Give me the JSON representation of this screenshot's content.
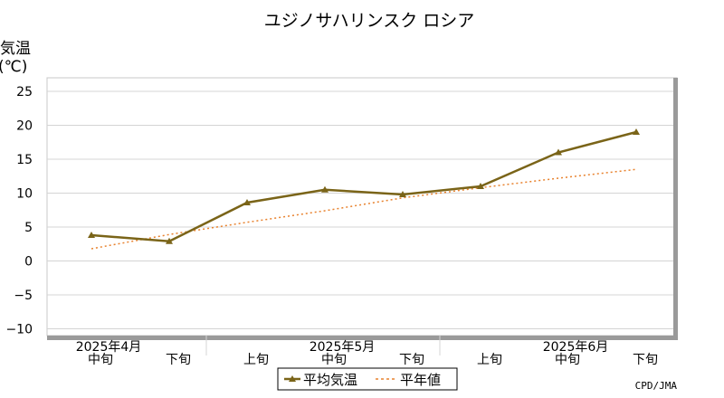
{
  "chart_data": {
    "type": "line",
    "title": "ユジノサハリンスク ロシア",
    "ylabel_line1": "気温",
    "ylabel_line2": "(℃)",
    "ylim": [
      -11,
      27
    ],
    "yticks": [
      -10,
      -5,
      0,
      5,
      10,
      15,
      20,
      25
    ],
    "grid": true,
    "legend_placement": "bottom-center",
    "categories": [
      "中旬",
      "下旬",
      "上旬",
      "中旬",
      "下旬",
      "上旬",
      "中旬",
      "下旬"
    ],
    "month_labels": [
      {
        "label": "2025年4月",
        "category_index": 0
      },
      {
        "label": "2025年5月",
        "category_index": 3
      },
      {
        "label": "2025年6月",
        "category_index": 6
      }
    ],
    "series": [
      {
        "name": "平均気温",
        "color": "#7a6418",
        "style": "solid-triangle",
        "values": [
          3.8,
          2.9,
          8.6,
          10.5,
          9.8,
          11.0,
          16.0,
          19.0
        ]
      },
      {
        "name": "平年値",
        "color": "#e8822e",
        "style": "dotted",
        "values": [
          1.8,
          3.9,
          5.7,
          7.4,
          9.3,
          10.8,
          12.2,
          13.5
        ]
      }
    ],
    "credit": "CPD/JMA"
  }
}
